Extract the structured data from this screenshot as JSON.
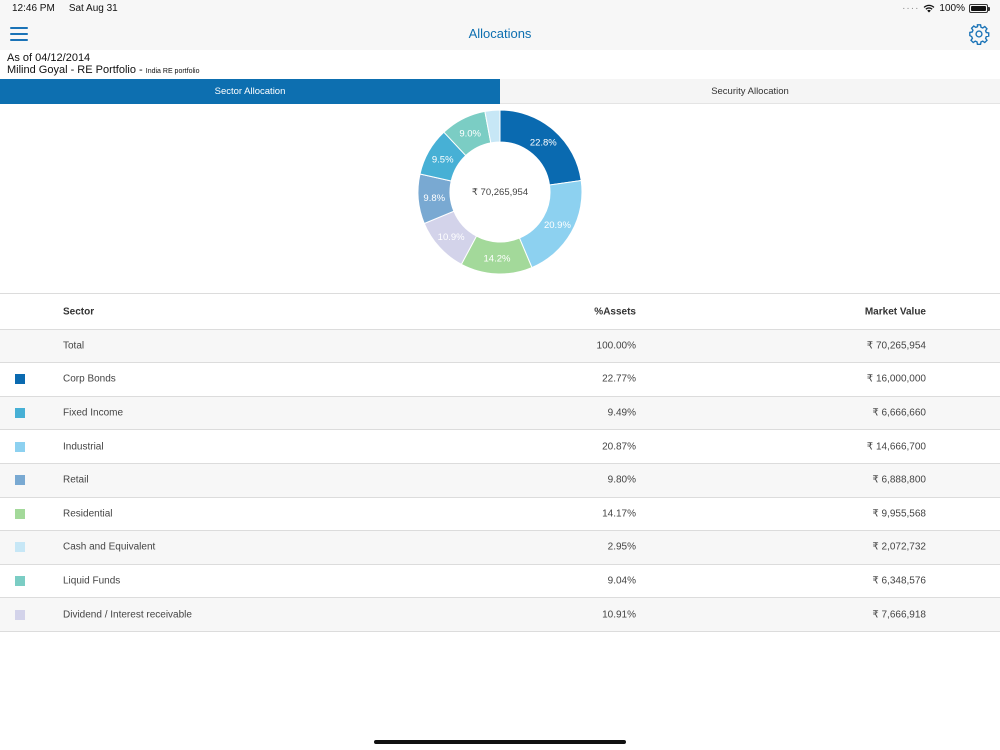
{
  "status_bar": {
    "time": "12:46 PM",
    "date": "Sat Aug 31",
    "battery": "100%"
  },
  "nav": {
    "title": "Allocations",
    "menu_icon": "hamburger-menu-icon",
    "settings_icon": "gear-icon"
  },
  "info": {
    "as_of": "As of 04/12/2014",
    "portfolio": "Milind Goyal - RE Portfolio - ",
    "portfolio_sub": "India RE portfolio"
  },
  "tabs": [
    {
      "label": "Sector Allocation",
      "active": true
    },
    {
      "label": "Security Allocation",
      "active": false
    }
  ],
  "chart_data": {
    "type": "pie",
    "center_label": "₹ 70,265,954",
    "slices": [
      {
        "label": "Corp Bonds",
        "value": 22.77,
        "display": "22.8%",
        "color": "#0a6ab0"
      },
      {
        "label": "Industrial",
        "value": 20.87,
        "display": "20.9%",
        "color": "#8dd1f0"
      },
      {
        "label": "Residential",
        "value": 14.17,
        "display": "14.2%",
        "color": "#a3d99a"
      },
      {
        "label": "Dividend / Interest receivable",
        "value": 10.91,
        "display": "10.9%",
        "color": "#d3d3ea"
      },
      {
        "label": "Retail",
        "value": 9.8,
        "display": "9.8%",
        "color": "#79a9d2"
      },
      {
        "label": "Fixed Income",
        "value": 9.49,
        "display": "9.5%",
        "color": "#47b0d5"
      },
      {
        "label": "Liquid Funds",
        "value": 9.04,
        "display": "9.0%",
        "color": "#7bcdc4"
      },
      {
        "label": "Cash and Equivalent",
        "value": 2.95,
        "display": "",
        "color": "#c7e7f6"
      }
    ]
  },
  "table": {
    "headers": {
      "sector": "Sector",
      "assets": "%Assets",
      "market_value": "Market Value"
    },
    "total": {
      "label": "Total",
      "assets": "100.00%",
      "market_value": "₹ 70,265,954"
    },
    "rows": [
      {
        "sector": "Corp Bonds",
        "assets": "22.77%",
        "market_value": "₹ 16,000,000",
        "color": "#0a6ab0"
      },
      {
        "sector": "Fixed Income",
        "assets": "9.49%",
        "market_value": "₹ 6,666,660",
        "color": "#47b0d5"
      },
      {
        "sector": "Industrial",
        "assets": "20.87%",
        "market_value": "₹ 14,666,700",
        "color": "#8dd1f0"
      },
      {
        "sector": "Retail",
        "assets": "9.80%",
        "market_value": "₹ 6,888,800",
        "color": "#79a9d2"
      },
      {
        "sector": "Residential",
        "assets": "14.17%",
        "market_value": "₹ 9,955,568",
        "color": "#a3d99a"
      },
      {
        "sector": "Cash and Equivalent",
        "assets": "2.95%",
        "market_value": "₹ 2,072,732",
        "color": "#c7e7f6"
      },
      {
        "sector": "Liquid Funds",
        "assets": "9.04%",
        "market_value": "₹ 6,348,576",
        "color": "#7bcdc4"
      },
      {
        "sector": "Dividend / Interest receivable",
        "assets": "10.91%",
        "market_value": "₹ 7,666,918",
        "color": "#d3d3ea"
      }
    ]
  }
}
